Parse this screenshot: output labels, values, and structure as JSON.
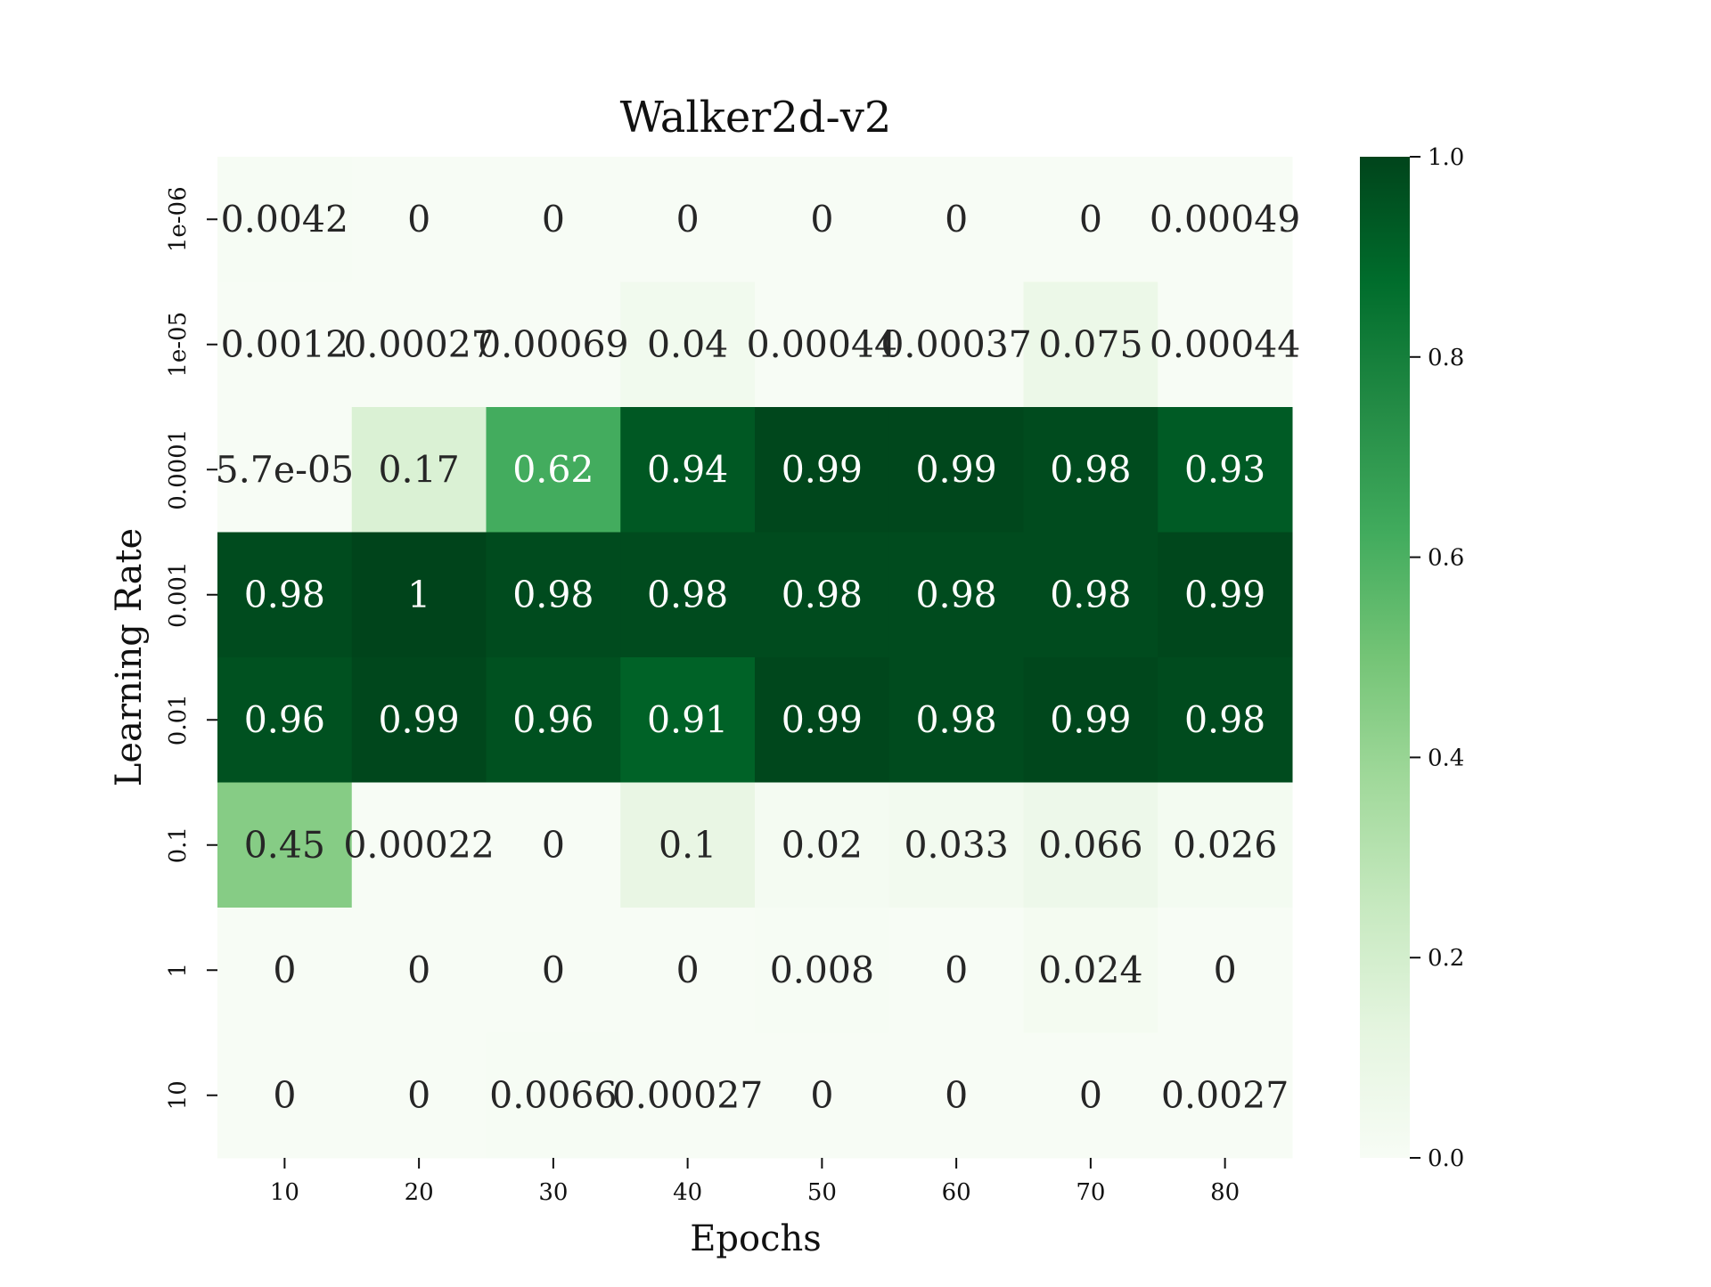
{
  "chart_data": {
    "type": "heatmap",
    "title": "Walker2d-v2",
    "xlabel": "Epochs",
    "ylabel": "Learning Rate",
    "x_categories": [
      "10",
      "20",
      "30",
      "40",
      "50",
      "60",
      "70",
      "80"
    ],
    "y_categories": [
      "1e-06",
      "1e-05",
      "0.0001",
      "0.001",
      "0.01",
      "0.1",
      "1",
      "10"
    ],
    "values": [
      [
        0.0042,
        0,
        0,
        0,
        0,
        0,
        0,
        0.00049
      ],
      [
        0.0012,
        0.00027,
        0.00069,
        0.04,
        0.00044,
        0.00037,
        0.075,
        0.00044
      ],
      [
        5.7e-05,
        0.17,
        0.62,
        0.94,
        0.99,
        0.99,
        0.98,
        0.93
      ],
      [
        0.98,
        1,
        0.98,
        0.98,
        0.98,
        0.98,
        0.98,
        0.99
      ],
      [
        0.96,
        0.99,
        0.96,
        0.91,
        0.99,
        0.98,
        0.99,
        0.98
      ],
      [
        0.45,
        0.00022,
        0,
        0.1,
        0.02,
        0.033,
        0.066,
        0.026
      ],
      [
        0,
        0,
        0,
        0,
        0.008,
        0,
        0.024,
        0
      ],
      [
        0,
        0,
        0.0066,
        0.00027,
        0,
        0,
        0,
        0.0027
      ]
    ],
    "cell_labels": [
      [
        "0.0042",
        "0",
        "0",
        "0",
        "0",
        "0",
        "0",
        "0.00049"
      ],
      [
        "0.0012",
        "0.00027",
        "0.00069",
        "0.04",
        "0.00044",
        "0.00037",
        "0.075",
        "0.00044"
      ],
      [
        "5.7e-05",
        "0.17",
        "0.62",
        "0.94",
        "0.99",
        "0.99",
        "0.98",
        "0.93"
      ],
      [
        "0.98",
        "1",
        "0.98",
        "0.98",
        "0.98",
        "0.98",
        "0.98",
        "0.99"
      ],
      [
        "0.96",
        "0.99",
        "0.96",
        "0.91",
        "0.99",
        "0.98",
        "0.99",
        "0.98"
      ],
      [
        "0.45",
        "0.00022",
        "0",
        "0.1",
        "0.02",
        "0.033",
        "0.066",
        "0.026"
      ],
      [
        "0",
        "0",
        "0",
        "0",
        "0.008",
        "0",
        "0.024",
        "0"
      ],
      [
        "0",
        "0",
        "0.0066",
        "0.00027",
        "0",
        "0",
        "0",
        "0.0027"
      ]
    ],
    "colormap": "Greens",
    "color_low": "#f7fcf5",
    "color_high": "#00441b",
    "colorbar": {
      "range": [
        0.0,
        1.0
      ],
      "ticks": [
        "0.0",
        "0.2",
        "0.4",
        "0.6",
        "0.8",
        "1.0"
      ]
    },
    "grid": false,
    "legend": "colorbar-right"
  }
}
